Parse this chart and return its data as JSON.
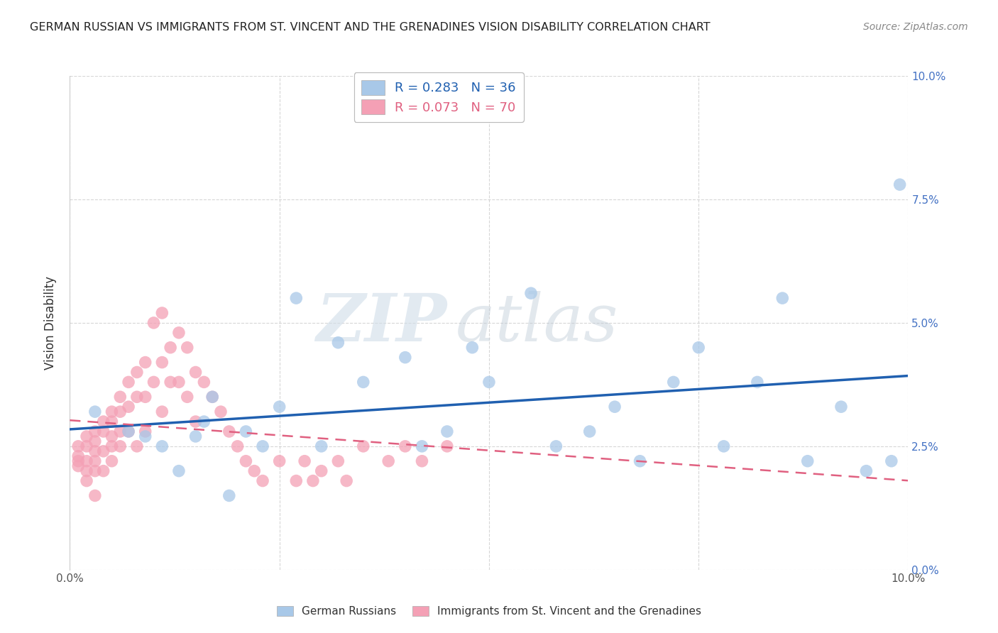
{
  "title": "GERMAN RUSSIAN VS IMMIGRANTS FROM ST. VINCENT AND THE GRENADINES VISION DISABILITY CORRELATION CHART",
  "source": "Source: ZipAtlas.com",
  "ylabel": "Vision Disability",
  "blue_label": "German Russians",
  "pink_label": "Immigrants from St. Vincent and the Grenadines",
  "blue_R": 0.283,
  "blue_N": 36,
  "pink_R": 0.073,
  "pink_N": 70,
  "blue_color": "#a8c8e8",
  "pink_color": "#f4a0b5",
  "blue_line_color": "#2060b0",
  "pink_line_color": "#e06080",
  "xlim": [
    0.0,
    0.1
  ],
  "ylim": [
    0.0,
    0.1
  ],
  "xticks": [
    0.0,
    0.025,
    0.05,
    0.075,
    0.1
  ],
  "yticks": [
    0.0,
    0.025,
    0.05,
    0.075,
    0.1
  ],
  "xtick_labels": [
    "0.0%",
    "",
    "",
    "",
    "10.0%"
  ],
  "ytick_labels_right": [
    "0.0%",
    "2.5%",
    "5.0%",
    "7.5%",
    "10.0%"
  ],
  "watermark_zip": "ZIP",
  "watermark_atlas": "atlas",
  "blue_scatter_x": [
    0.003,
    0.007,
    0.009,
    0.011,
    0.013,
    0.015,
    0.016,
    0.017,
    0.019,
    0.021,
    0.023,
    0.025,
    0.027,
    0.03,
    0.032,
    0.035,
    0.04,
    0.042,
    0.045,
    0.048,
    0.05,
    0.055,
    0.058,
    0.062,
    0.065,
    0.068,
    0.072,
    0.075,
    0.078,
    0.082,
    0.085,
    0.088,
    0.092,
    0.095,
    0.098,
    0.099
  ],
  "blue_scatter_y": [
    0.032,
    0.028,
    0.027,
    0.025,
    0.02,
    0.027,
    0.03,
    0.035,
    0.015,
    0.028,
    0.025,
    0.033,
    0.055,
    0.025,
    0.046,
    0.038,
    0.043,
    0.025,
    0.028,
    0.045,
    0.038,
    0.056,
    0.025,
    0.028,
    0.033,
    0.022,
    0.038,
    0.045,
    0.025,
    0.038,
    0.055,
    0.022,
    0.033,
    0.02,
    0.022,
    0.078
  ],
  "pink_scatter_x": [
    0.001,
    0.001,
    0.001,
    0.001,
    0.002,
    0.002,
    0.002,
    0.002,
    0.002,
    0.003,
    0.003,
    0.003,
    0.003,
    0.003,
    0.003,
    0.004,
    0.004,
    0.004,
    0.004,
    0.005,
    0.005,
    0.005,
    0.005,
    0.005,
    0.006,
    0.006,
    0.006,
    0.006,
    0.007,
    0.007,
    0.007,
    0.008,
    0.008,
    0.008,
    0.009,
    0.009,
    0.009,
    0.01,
    0.01,
    0.011,
    0.011,
    0.011,
    0.012,
    0.012,
    0.013,
    0.013,
    0.014,
    0.014,
    0.015,
    0.015,
    0.016,
    0.017,
    0.018,
    0.019,
    0.02,
    0.021,
    0.022,
    0.023,
    0.025,
    0.027,
    0.028,
    0.029,
    0.03,
    0.032,
    0.033,
    0.035,
    0.038,
    0.04,
    0.042,
    0.045
  ],
  "pink_scatter_y": [
    0.025,
    0.023,
    0.022,
    0.021,
    0.027,
    0.025,
    0.022,
    0.02,
    0.018,
    0.028,
    0.026,
    0.024,
    0.022,
    0.02,
    0.015,
    0.03,
    0.028,
    0.024,
    0.02,
    0.032,
    0.03,
    0.027,
    0.025,
    0.022,
    0.035,
    0.032,
    0.028,
    0.025,
    0.038,
    0.033,
    0.028,
    0.04,
    0.035,
    0.025,
    0.042,
    0.035,
    0.028,
    0.05,
    0.038,
    0.052,
    0.042,
    0.032,
    0.045,
    0.038,
    0.048,
    0.038,
    0.045,
    0.035,
    0.04,
    0.03,
    0.038,
    0.035,
    0.032,
    0.028,
    0.025,
    0.022,
    0.02,
    0.018,
    0.022,
    0.018,
    0.022,
    0.018,
    0.02,
    0.022,
    0.018,
    0.025,
    0.022,
    0.025,
    0.022,
    0.025
  ]
}
